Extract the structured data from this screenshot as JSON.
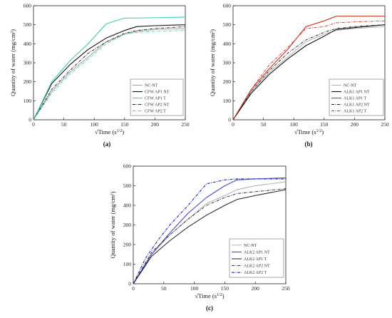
{
  "chart_data": [
    {
      "type": "line",
      "panel_label": "(a)",
      "xlabel": "√Time (s^1/2)",
      "ylabel": "Quantity of water (mg/cm²)",
      "xlim": [
        0,
        250
      ],
      "ylim": [
        0,
        600
      ],
      "xticks": [
        0,
        50,
        100,
        150,
        200,
        250
      ],
      "yticks": [
        0,
        100,
        200,
        300,
        400,
        500,
        600
      ],
      "grid": false,
      "legend_position": "bottom-right",
      "series": [
        {
          "name": "NC-NT",
          "color": "#999999",
          "dash": "",
          "width": 0.9,
          "x": [
            0,
            30,
            60,
            90,
            120,
            150,
            170,
            200,
            250
          ],
          "y": [
            0,
            150,
            250,
            330,
            410,
            450,
            465,
            475,
            480
          ]
        },
        {
          "name": "CFW AP1 NT",
          "color": "#111111",
          "dash": "",
          "width": 1.1,
          "x": [
            0,
            30,
            60,
            90,
            120,
            150,
            170,
            200,
            250
          ],
          "y": [
            0,
            190,
            290,
            370,
            430,
            470,
            490,
            495,
            500
          ]
        },
        {
          "name": "CFW AP1 T",
          "color": "#4fd1b4",
          "dash": "",
          "width": 1.2,
          "x": [
            0,
            30,
            60,
            90,
            120,
            150,
            170,
            200,
            250
          ],
          "y": [
            0,
            200,
            310,
            400,
            505,
            535,
            535,
            537,
            540
          ]
        },
        {
          "name": "CFW AP2 NT",
          "color": "#222222",
          "dash": "4,1.5,1,1.5",
          "width": 0.9,
          "x": [
            0,
            30,
            60,
            90,
            120,
            150,
            170,
            200,
            250
          ],
          "y": [
            0,
            160,
            260,
            350,
            410,
            455,
            470,
            480,
            490
          ]
        },
        {
          "name": "CFW AP2 T",
          "color": "#4fd1b4",
          "dash": "4,1.5,1,1.5",
          "width": 0.9,
          "x": [
            0,
            30,
            60,
            90,
            120,
            150,
            170,
            200,
            250
          ],
          "y": [
            0,
            140,
            240,
            320,
            400,
            450,
            460,
            465,
            470
          ]
        }
      ]
    },
    {
      "type": "line",
      "panel_label": "(b)",
      "xlabel": "√Time (s^1/2)",
      "ylabel": "Quantity of water (mg/cm²)",
      "xlim": [
        0,
        250
      ],
      "ylim": [
        0,
        600
      ],
      "xticks": [
        0,
        50,
        100,
        150,
        200,
        250
      ],
      "yticks": [
        0,
        100,
        200,
        300,
        400,
        500,
        600
      ],
      "grid": false,
      "legend_position": "bottom-right",
      "series": [
        {
          "name": "NC-NT",
          "color": "#aaaaaa",
          "dash": "",
          "width": 0.9,
          "x": [
            0,
            30,
            60,
            90,
            120,
            150,
            170,
            200,
            250
          ],
          "y": [
            0,
            150,
            250,
            330,
            410,
            450,
            470,
            480,
            490
          ]
        },
        {
          "name": "ALK1 AP1 NT",
          "color": "#111111",
          "dash": "",
          "width": 1.1,
          "x": [
            0,
            30,
            60,
            90,
            120,
            150,
            170,
            200,
            250
          ],
          "y": [
            0,
            140,
            240,
            320,
            390,
            440,
            475,
            485,
            500
          ]
        },
        {
          "name": "ALK1 AP1 T",
          "color": "#c0392b",
          "dash": "",
          "width": 1.1,
          "x": [
            0,
            30,
            60,
            90,
            120,
            150,
            170,
            200,
            250
          ],
          "y": [
            0,
            160,
            270,
            370,
            490,
            520,
            545,
            545,
            545
          ]
        },
        {
          "name": "ALK1 AP2 NT",
          "color": "#222222",
          "dash": "4,1.5,1,1.5",
          "width": 0.9,
          "x": [
            0,
            30,
            60,
            90,
            120,
            150,
            170,
            200,
            250
          ],
          "y": [
            0,
            150,
            260,
            350,
            420,
            460,
            480,
            490,
            500
          ]
        },
        {
          "name": "ALK1 AP2 T",
          "color": "#c0392b",
          "dash": "4,1.5,1,1.5",
          "width": 0.9,
          "x": [
            0,
            30,
            60,
            90,
            120,
            150,
            170,
            200,
            250
          ],
          "y": [
            0,
            160,
            290,
            380,
            480,
            490,
            510,
            515,
            520
          ]
        }
      ]
    },
    {
      "type": "line",
      "panel_label": "(c)",
      "xlabel": "√Time (s^1/2)",
      "ylabel": "Quantity of water (mg/cm²)",
      "xlim": [
        0,
        250
      ],
      "ylim": [
        0,
        600
      ],
      "xticks": [
        0,
        50,
        100,
        150,
        200,
        250
      ],
      "yticks": [
        0,
        100,
        200,
        300,
        400,
        500,
        600
      ],
      "grid": false,
      "legend_position": "bottom-right",
      "series": [
        {
          "name": "NC-NT",
          "color": "#aaaaaa",
          "dash": "",
          "width": 0.9,
          "x": [
            0,
            30,
            60,
            90,
            120,
            150,
            170,
            200,
            250
          ],
          "y": [
            0,
            150,
            250,
            330,
            410,
            450,
            480,
            500,
            520
          ]
        },
        {
          "name": "ALK2 AP1 NT",
          "color": "#4a4ab8",
          "dash": "",
          "width": 1.1,
          "x": [
            0,
            30,
            60,
            90,
            120,
            150,
            170,
            200,
            250
          ],
          "y": [
            0,
            150,
            260,
            360,
            440,
            500,
            530,
            535,
            540
          ]
        },
        {
          "name": "ALK2 AP1 T",
          "color": "#222222",
          "dash": "",
          "width": 1.0,
          "x": [
            0,
            30,
            60,
            90,
            120,
            150,
            170,
            200,
            250
          ],
          "y": [
            0,
            140,
            220,
            290,
            350,
            400,
            430,
            450,
            480
          ]
        },
        {
          "name": "ALK2 AP2 NT",
          "color": "#222222",
          "dash": "4,1.5,1,1.5",
          "width": 0.9,
          "x": [
            0,
            30,
            60,
            90,
            120,
            150,
            170,
            200,
            250
          ],
          "y": [
            0,
            160,
            250,
            330,
            400,
            440,
            460,
            470,
            485
          ]
        },
        {
          "name": "ALK2 AP2 T",
          "color": "#1f2bb3",
          "dash": "4,1.5,1,1.5",
          "width": 1.1,
          "x": [
            0,
            20,
            40,
            60,
            90,
            120,
            150,
            170,
            200,
            250
          ],
          "y": [
            0,
            130,
            220,
            300,
            400,
            510,
            530,
            535,
            535,
            535
          ]
        }
      ]
    }
  ]
}
